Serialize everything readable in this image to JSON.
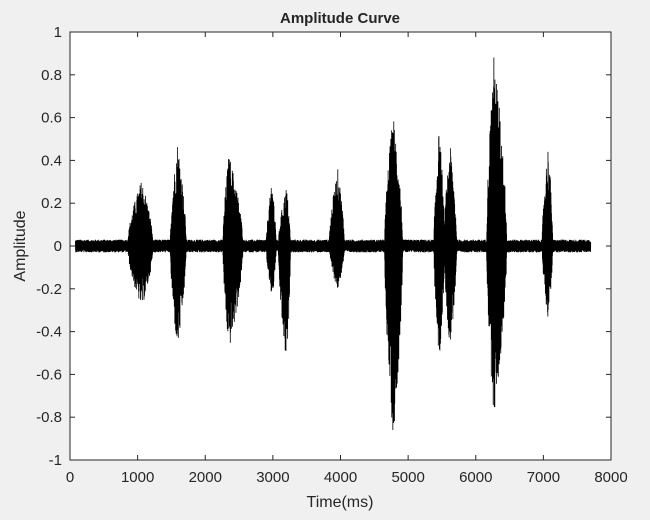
{
  "chart_data": {
    "type": "line",
    "title": "Amplitude Curve",
    "xlabel": "Time(ms)",
    "ylabel": "Amplitude",
    "xlim": [
      0,
      8000
    ],
    "ylim": [
      -1,
      1
    ],
    "x_ticks": [
      0,
      1000,
      2000,
      3000,
      4000,
      5000,
      6000,
      7000,
      8000
    ],
    "y_ticks": [
      -1,
      -0.8,
      -0.6,
      -0.4,
      -0.2,
      0,
      0.2,
      0.4,
      0.6,
      0.8,
      1
    ],
    "x_tick_labels": [
      "0",
      "1000",
      "2000",
      "3000",
      "4000",
      "5000",
      "6000",
      "7000",
      "8000"
    ],
    "y_tick_labels": [
      "-1",
      "-0.8",
      "-0.6",
      "-0.4",
      "-0.2",
      "0",
      "0.2",
      "0.4",
      "0.6",
      "0.8",
      "1"
    ],
    "grid": false,
    "signal_range_ms": [
      80,
      7700
    ],
    "noise_floor": 0.03,
    "bursts": [
      {
        "start": 850,
        "end": 1230,
        "peak_time": 1060,
        "pos_peak": 0.31,
        "neg_peak": -0.29
      },
      {
        "start": 1480,
        "end": 1720,
        "peak_time": 1590,
        "pos_peak": 0.49,
        "neg_peak": -0.49
      },
      {
        "start": 2260,
        "end": 2560,
        "peak_time": 2350,
        "pos_peak": 0.43,
        "neg_peak": -0.49
      },
      {
        "start": 2900,
        "end": 3050,
        "peak_time": 2990,
        "pos_peak": 0.3,
        "neg_peak": -0.25
      },
      {
        "start": 3080,
        "end": 3260,
        "peak_time": 3200,
        "pos_peak": 0.28,
        "neg_peak": -0.57
      },
      {
        "start": 3830,
        "end": 4060,
        "peak_time": 3960,
        "pos_peak": 0.36,
        "neg_peak": -0.21
      },
      {
        "start": 4650,
        "end": 4920,
        "peak_time": 4780,
        "pos_peak": 0.62,
        "neg_peak": -0.9
      },
      {
        "start": 5380,
        "end": 5540,
        "peak_time": 5460,
        "pos_peak": 0.55,
        "neg_peak": -0.55
      },
      {
        "start": 5530,
        "end": 5720,
        "peak_time": 5620,
        "pos_peak": 0.48,
        "neg_peak": -0.48
      },
      {
        "start": 6160,
        "end": 6460,
        "peak_time": 6270,
        "pos_peak": 0.9,
        "neg_peak": -0.8
      },
      {
        "start": 6980,
        "end": 7140,
        "peak_time": 7070,
        "pos_peak": 0.47,
        "neg_peak": -0.34
      }
    ],
    "color": "#000000"
  }
}
